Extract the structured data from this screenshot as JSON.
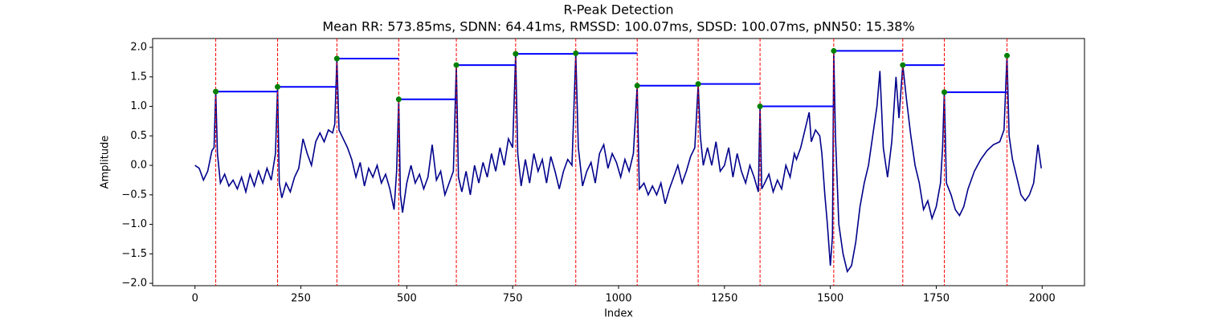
{
  "chart_data": {
    "type": "line",
    "title": "R-Peak Detection",
    "subtitle": "Mean RR: 573.85ms, SDNN: 64.41ms, RMSSD: 100.07ms, SDSD: 100.07ms, pNN50: 15.38%",
    "x_label": "Index",
    "y_label": "Amplitude",
    "x": [
      0,
      10,
      20,
      30,
      40,
      45,
      49,
      53,
      60,
      70,
      80,
      90,
      100,
      110,
      120,
      130,
      140,
      150,
      160,
      170,
      180,
      190,
      195,
      199,
      205,
      215,
      225,
      235,
      245,
      255,
      265,
      275,
      285,
      295,
      305,
      315,
      325,
      330,
      335,
      340,
      350,
      360,
      370,
      380,
      390,
      400,
      410,
      420,
      430,
      440,
      450,
      460,
      470,
      476,
      481,
      485,
      490,
      500,
      510,
      520,
      530,
      540,
      550,
      560,
      570,
      580,
      590,
      600,
      610,
      617,
      622,
      630,
      640,
      650,
      660,
      670,
      680,
      690,
      700,
      710,
      720,
      730,
      740,
      750,
      757,
      762,
      770,
      780,
      790,
      800,
      810,
      820,
      830,
      840,
      850,
      860,
      870,
      880,
      890,
      899,
      905,
      915,
      925,
      935,
      945,
      955,
      965,
      975,
      985,
      995,
      1005,
      1015,
      1025,
      1035,
      1044,
      1049,
      1060,
      1070,
      1080,
      1090,
      1100,
      1110,
      1120,
      1130,
      1140,
      1150,
      1160,
      1170,
      1180,
      1188,
      1193,
      1200,
      1210,
      1220,
      1230,
      1240,
      1250,
      1260,
      1270,
      1280,
      1290,
      1300,
      1310,
      1320,
      1330,
      1334,
      1338,
      1345,
      1355,
      1365,
      1375,
      1385,
      1395,
      1405,
      1415,
      1420,
      1430,
      1440,
      1450,
      1455,
      1465,
      1475,
      1480,
      1487,
      1493,
      1500,
      1505,
      1508,
      1512,
      1520,
      1530,
      1540,
      1550,
      1560,
      1570,
      1580,
      1590,
      1600,
      1610,
      1617,
      1625,
      1635,
      1645,
      1655,
      1662,
      1667,
      1671,
      1680,
      1690,
      1700,
      1710,
      1720,
      1730,
      1740,
      1750,
      1760,
      1765,
      1769,
      1774,
      1785,
      1795,
      1805,
      1815,
      1825,
      1840,
      1855,
      1870,
      1885,
      1900,
      1910,
      1917,
      1922,
      1930,
      1940,
      1950,
      1960,
      1970,
      1980,
      1990,
      1998
    ],
    "series": [
      {
        "color": "#00008b",
        "values": [
          0.0,
          -0.05,
          -0.25,
          -0.1,
          0.25,
          0.3,
          1.25,
          0.2,
          -0.3,
          -0.15,
          -0.35,
          -0.25,
          -0.4,
          -0.2,
          -0.45,
          -0.15,
          -0.35,
          -0.1,
          -0.3,
          -0.05,
          -0.25,
          0.2,
          1.33,
          -0.3,
          -0.55,
          -0.3,
          -0.45,
          -0.2,
          -0.05,
          0.45,
          0.2,
          0.0,
          0.4,
          0.55,
          0.4,
          0.6,
          0.55,
          0.7,
          1.81,
          0.6,
          0.45,
          0.3,
          0.1,
          -0.2,
          0.05,
          -0.35,
          -0.05,
          -0.2,
          0.0,
          -0.3,
          -0.15,
          -0.4,
          -0.75,
          -0.1,
          1.12,
          -0.5,
          -0.8,
          -0.3,
          0.0,
          -0.3,
          -0.15,
          -0.4,
          -0.2,
          0.35,
          -0.25,
          -0.1,
          -0.5,
          -0.3,
          -0.1,
          1.7,
          -0.2,
          -0.45,
          -0.1,
          -0.5,
          0.0,
          -0.3,
          0.05,
          -0.2,
          0.2,
          -0.1,
          0.3,
          0.0,
          0.45,
          0.3,
          1.89,
          0.2,
          -0.35,
          0.1,
          -0.3,
          0.2,
          -0.1,
          0.1,
          -0.3,
          0.15,
          -0.1,
          -0.4,
          -0.1,
          0.1,
          0.0,
          1.9,
          0.3,
          -0.35,
          -0.1,
          0.05,
          -0.3,
          0.2,
          0.35,
          -0.05,
          0.2,
          0.05,
          -0.2,
          0.1,
          -0.1,
          0.2,
          1.35,
          -0.4,
          -0.3,
          -0.5,
          -0.35,
          -0.5,
          -0.3,
          -0.65,
          -0.4,
          -0.2,
          0.0,
          -0.3,
          -0.1,
          0.15,
          0.3,
          1.38,
          0.5,
          0.0,
          0.3,
          0.0,
          0.4,
          -0.1,
          0.0,
          0.3,
          -0.2,
          0.2,
          -0.1,
          -0.3,
          0.0,
          -0.2,
          -0.45,
          1.0,
          -0.4,
          -0.3,
          -0.15,
          -0.45,
          -0.25,
          -0.4,
          0.0,
          -0.2,
          0.2,
          0.1,
          0.3,
          0.6,
          0.9,
          0.4,
          0.6,
          0.5,
          0.2,
          -0.5,
          -1.0,
          -1.7,
          -1.2,
          1.94,
          0.5,
          -1.0,
          -1.5,
          -1.8,
          -1.7,
          -1.3,
          -0.7,
          -0.3,
          0.0,
          0.5,
          1.0,
          1.6,
          0.3,
          -0.2,
          0.4,
          1.5,
          0.8,
          1.3,
          1.7,
          1.1,
          0.5,
          0.0,
          -0.3,
          -0.75,
          -0.6,
          -0.9,
          -0.7,
          -0.3,
          0.3,
          1.24,
          -0.3,
          -0.5,
          -0.75,
          -0.85,
          -0.7,
          -0.4,
          -0.1,
          0.1,
          0.25,
          0.35,
          0.4,
          0.6,
          1.86,
          0.5,
          0.1,
          -0.2,
          -0.5,
          -0.6,
          -0.5,
          -0.3,
          0.35,
          -0.05
        ]
      }
    ],
    "peaks": {
      "color": "#008000",
      "x": [
        49,
        195,
        335,
        481,
        617,
        757,
        899,
        1044,
        1188,
        1334,
        1508,
        1671,
        1769,
        1917
      ],
      "values": [
        1.25,
        1.33,
        1.81,
        1.12,
        1.7,
        1.89,
        1.9,
        1.35,
        1.38,
        1.0,
        1.94,
        1.7,
        1.24,
        1.86
      ]
    },
    "interval_color": "#0000ff",
    "peak_line_color": "#ff0000",
    "xlim": [
      -100,
      2100
    ],
    "ylim": [
      -2.04,
      2.15
    ],
    "xticks": [
      0,
      250,
      500,
      750,
      1000,
      1250,
      1500,
      1750,
      2000
    ],
    "yticks": [
      {
        "value": -2,
        "label": "−2.0"
      },
      {
        "value": -1.5,
        "label": "−1.5"
      },
      {
        "value": -1,
        "label": "−1.0"
      },
      {
        "value": -0.5,
        "label": "−0.5"
      },
      {
        "value": 0,
        "label": "0.0"
      },
      {
        "value": 0.5,
        "label": "0.5"
      },
      {
        "value": 1,
        "label": "1.0"
      },
      {
        "value": 1.5,
        "label": "1.5"
      },
      {
        "value": 2,
        "label": "2.0"
      }
    ]
  }
}
